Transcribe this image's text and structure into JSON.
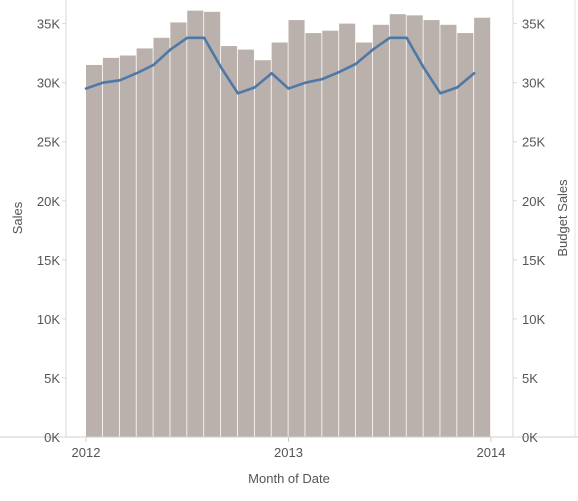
{
  "chart_data": {
    "type": "bar",
    "xlabel": "Month of Date",
    "ylabel_left": "Sales",
    "ylabel_right": "Budget Sales",
    "ylim": [
      0,
      37000
    ],
    "yticks": [
      0,
      5000,
      10000,
      15000,
      20000,
      25000,
      30000,
      35000
    ],
    "ytick_labels": [
      "0K",
      "5K",
      "10K",
      "15K",
      "20K",
      "25K",
      "30K",
      "35K"
    ],
    "x_tick_labels": [
      "2012",
      "2013",
      "2014"
    ],
    "x_domain": [
      "2012-01",
      "2014-01"
    ],
    "categories": [
      "2012-01",
      "2012-02",
      "2012-03",
      "2012-04",
      "2012-05",
      "2012-06",
      "2012-07",
      "2012-08",
      "2012-09",
      "2012-10",
      "2012-11",
      "2012-12",
      "2013-01",
      "2013-02",
      "2013-03",
      "2013-04",
      "2013-05",
      "2013-06",
      "2013-07",
      "2013-08",
      "2013-09",
      "2013-10",
      "2013-11",
      "2013-12"
    ],
    "series": [
      {
        "mark": "bar",
        "axis": "left",
        "color": "#bab0ac",
        "values": [
          31500,
          32100,
          32300,
          32900,
          33800,
          35100,
          36100,
          36000,
          33100,
          32800,
          31900,
          33400,
          35300,
          34200,
          34400,
          35000,
          33400,
          34900,
          35800,
          35700,
          35300,
          34900,
          34200,
          35500
        ]
      },
      {
        "mark": "line",
        "axis": "right",
        "color": "#4e79a7",
        "values": [
          29500,
          30000,
          30200,
          30800,
          31500,
          32800,
          33800,
          33800,
          31300,
          29100,
          29600,
          30800,
          29500,
          30000,
          30300,
          30900,
          31600,
          32800,
          33800,
          33800,
          31300,
          29100,
          29600,
          30800
        ]
      }
    ],
    "gridlines": false
  }
}
